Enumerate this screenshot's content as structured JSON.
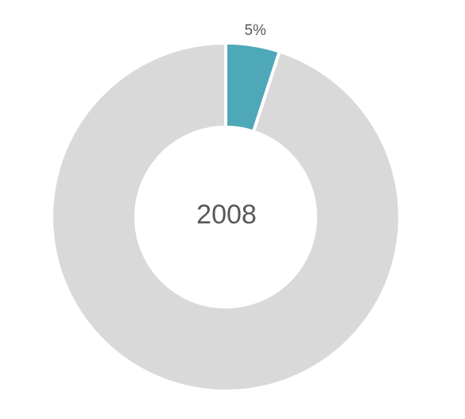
{
  "chart_data": {
    "type": "pie",
    "variant": "donut",
    "center_label": "2008",
    "slices": [
      {
        "value": 5,
        "color": "#4ea8b8",
        "label": "5%"
      },
      {
        "value": 95,
        "color": "#d9d9d9",
        "label": ""
      }
    ],
    "start_angle_deg": 0,
    "direction": "clockwise",
    "legend": "none"
  }
}
